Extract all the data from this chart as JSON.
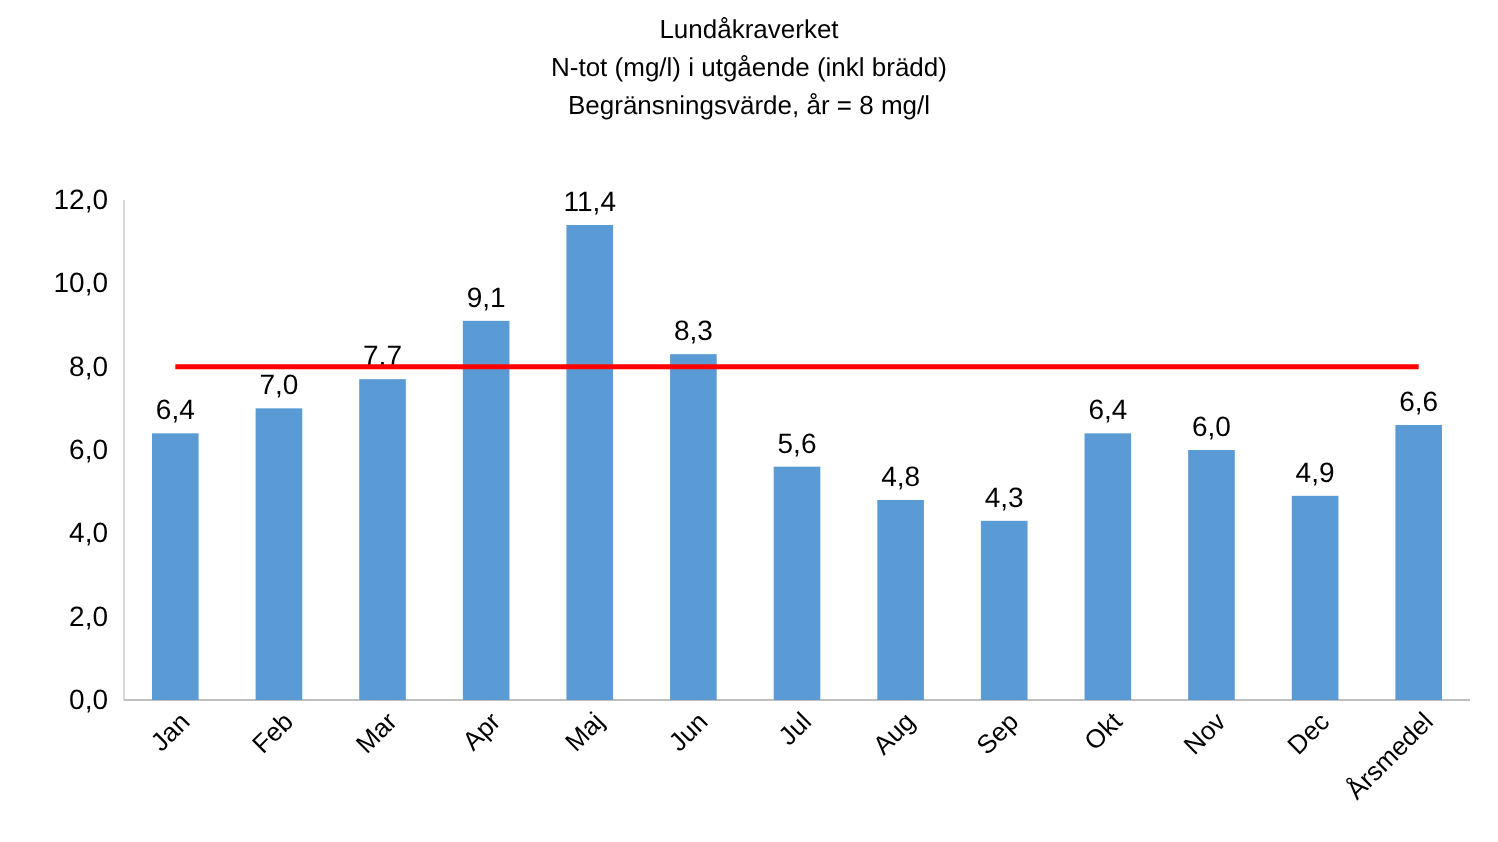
{
  "chart_data": {
    "type": "bar",
    "title": "Lundåkraverket",
    "subtitle": "N-tot (mg/l) i utgående (inkl brädd)\nBegränsningsvärde, år = 8 mg/l",
    "categories": [
      "Jan",
      "Feb",
      "Mar",
      "Apr",
      "Maj",
      "Jun",
      "Jul",
      "Aug",
      "Sep",
      "Okt",
      "Nov",
      "Dec",
      "Årsmedel"
    ],
    "values": [
      6.4,
      7.0,
      7.7,
      9.1,
      11.4,
      8.3,
      5.6,
      4.8,
      4.3,
      6.4,
      6.0,
      4.9,
      6.6
    ],
    "value_labels": [
      "6,4",
      "7,0",
      "7,7",
      "9,1",
      "11,4",
      "8,3",
      "5,6",
      "4,8",
      "4,3",
      "6,4",
      "6,0",
      "4,9",
      "6,6"
    ],
    "color": "#5b9bd5",
    "ylim": [
      0,
      12
    ],
    "yticks": [
      {
        "value": 0,
        "label": "0,0"
      },
      {
        "value": 2,
        "label": "2,0"
      },
      {
        "value": 4,
        "label": "4,0"
      },
      {
        "value": 6,
        "label": "6,0"
      },
      {
        "value": 8,
        "label": "8,0"
      },
      {
        "value": 10,
        "label": "10,0"
      },
      {
        "value": 12,
        "label": "12,0"
      }
    ],
    "ref_lines": [
      {
        "axis": "y",
        "value": 8,
        "color": "#ff0000"
      }
    ]
  }
}
